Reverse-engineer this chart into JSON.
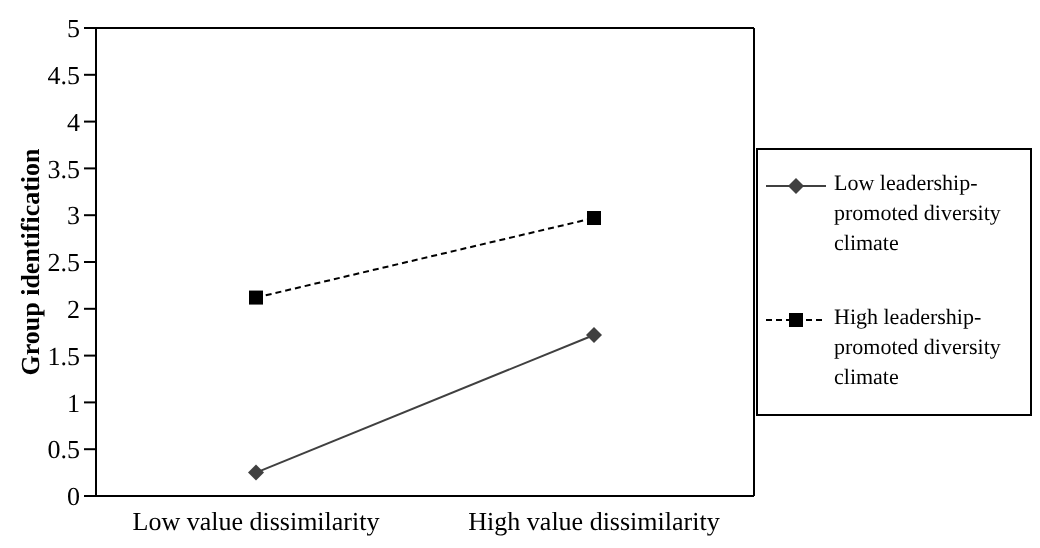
{
  "chart_data": {
    "type": "line",
    "ylabel": "Group identification",
    "categories": [
      "Low value dissimilarity",
      "High value dissimilarity"
    ],
    "series": [
      {
        "name": "Low leadership-promoted diversity climate",
        "color": "#404040",
        "values": [
          0.25,
          1.72
        ],
        "marker": "diamond",
        "line_style": "solid"
      },
      {
        "name": "High leadership-promoted diversity climate",
        "color": "#000000",
        "values": [
          2.12,
          2.97
        ],
        "marker": "square",
        "line_style": "dashed"
      }
    ],
    "ylim": [
      0,
      5
    ],
    "yticks": [
      0,
      0.5,
      1,
      1.5,
      2,
      2.5,
      3,
      3.5,
      4,
      4.5,
      5
    ],
    "grid": false,
    "legend": "right"
  }
}
